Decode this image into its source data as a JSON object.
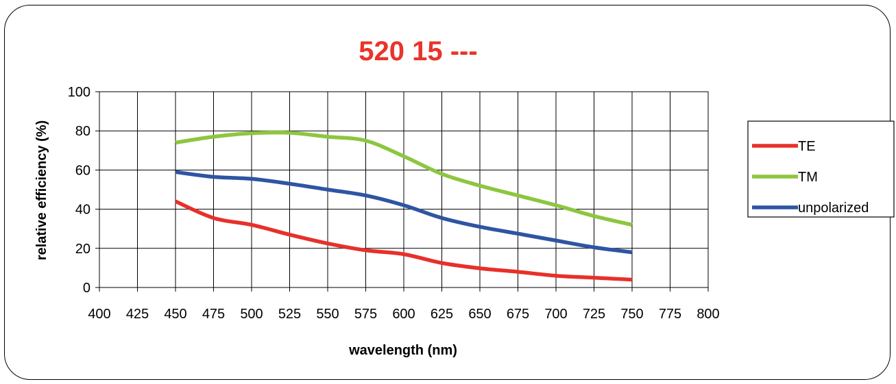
{
  "chart_data": {
    "type": "line",
    "title": "520 15 ---",
    "xlabel": "wavelength (nm)",
    "ylabel": "relative efficiency (%)",
    "xlim": [
      400,
      800
    ],
    "ylim": [
      0,
      100
    ],
    "xticks": [
      "400",
      "425",
      "450",
      "475",
      "500",
      "525",
      "550",
      "575",
      "600",
      "625",
      "650",
      "675",
      "700",
      "725",
      "750",
      "775",
      "800"
    ],
    "yticks": [
      "0",
      "20",
      "40",
      "60",
      "80",
      "100"
    ],
    "grid": true,
    "legend_position": "right",
    "series": [
      {
        "name": "TE",
        "color": "#e8302a",
        "x": [
          450,
          475,
          500,
          525,
          550,
          575,
          600,
          625,
          650,
          675,
          700,
          725,
          750
        ],
        "y": [
          44,
          35.5,
          32,
          27,
          22.5,
          19,
          17,
          12.5,
          9.8,
          8,
          6,
          5,
          4
        ]
      },
      {
        "name": "TM",
        "color": "#8dc63f",
        "x": [
          450,
          475,
          500,
          525,
          550,
          575,
          600,
          625,
          650,
          675,
          700,
          725,
          750
        ],
        "y": [
          74,
          77,
          78.8,
          79,
          77,
          75,
          67,
          58,
          52,
          47,
          42,
          36.5,
          32
        ]
      },
      {
        "name": "unpolarized",
        "color": "#2e55a3",
        "x": [
          450,
          475,
          500,
          525,
          550,
          575,
          600,
          625,
          650,
          675,
          700,
          725,
          750
        ],
        "y": [
          59,
          56.5,
          55.5,
          53,
          50,
          47,
          42,
          35.5,
          31,
          27.5,
          24,
          20.5,
          18
        ]
      }
    ]
  }
}
